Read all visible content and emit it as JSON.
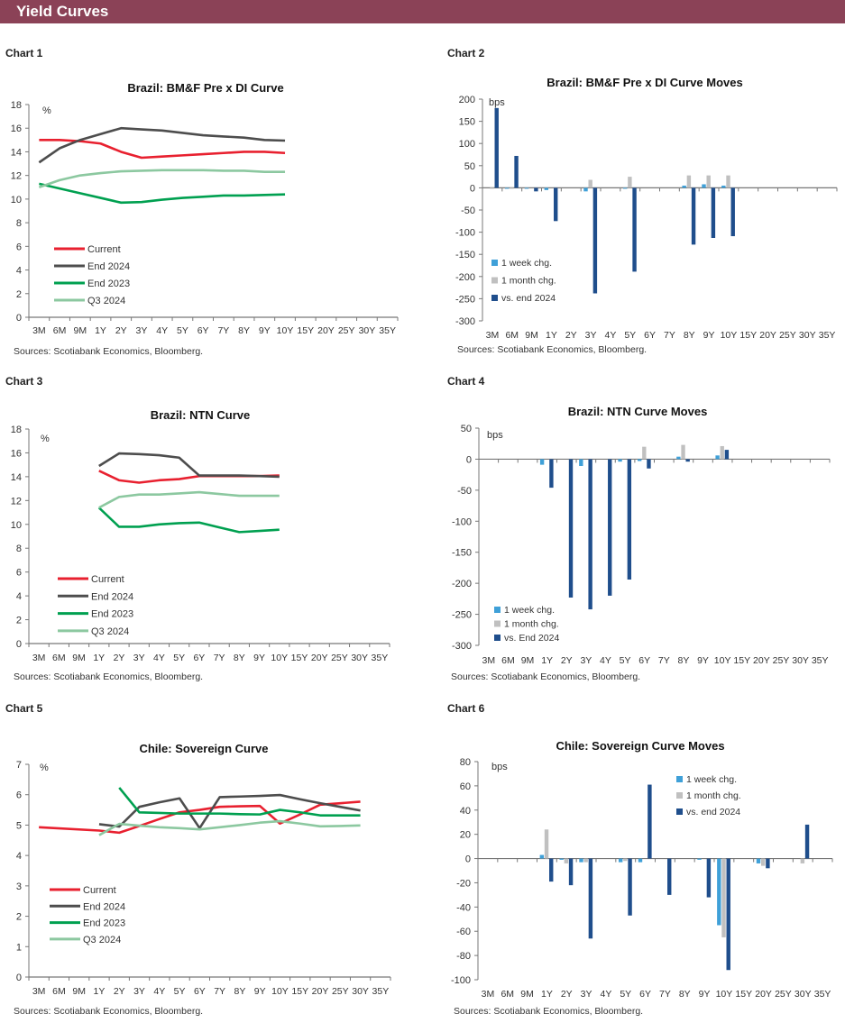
{
  "header": {
    "title": "Yield Curves"
  },
  "colors": {
    "header_bg": "#8b4257",
    "Current": "#e8202f",
    "End 2024": "#4d4d4d",
    "End 2023": "#00a050",
    "Q3 2024": "#8cc8a0",
    "week": "#3fa0d8",
    "month": "#c0c0c0",
    "end": "#1f4e8c"
  },
  "chart_data": [
    {
      "label": "Chart 1",
      "type": "line",
      "title": "Brazil: BM&F Pre x DI Curve",
      "ylabel": "%",
      "ylim": [
        0,
        18
      ],
      "ytick_step": 2,
      "grid": false,
      "legend": "bottom-left",
      "sources": "Sources:  Scotiabank  Economics,  Bloomberg.",
      "categories": [
        "3M",
        "6M",
        "9M",
        "1Y",
        "2Y",
        "3Y",
        "4Y",
        "5Y",
        "6Y",
        "7Y",
        "8Y",
        "9Y",
        "10Y",
        "15Y",
        "20Y",
        "25Y",
        "30Y",
        "35Y"
      ],
      "series": [
        {
          "name": "Current",
          "values": [
            15.0,
            15.0,
            14.9,
            14.7,
            14.0,
            13.5,
            13.6,
            13.7,
            13.8,
            13.9,
            14.0,
            14.0,
            13.9,
            null,
            null,
            null,
            null,
            null
          ]
        },
        {
          "name": "End 2024",
          "values": [
            13.1,
            14.3,
            15.0,
            15.5,
            16.0,
            15.9,
            15.8,
            15.6,
            15.4,
            15.3,
            15.2,
            15.0,
            14.95,
            null,
            null,
            null,
            null,
            null
          ]
        },
        {
          "name": "End 2023",
          "values": [
            11.3,
            10.9,
            10.5,
            10.1,
            9.7,
            9.75,
            9.95,
            10.1,
            10.2,
            10.3,
            10.3,
            10.35,
            10.4,
            null,
            null,
            null,
            null,
            null
          ]
        },
        {
          "name": "Q3 2024",
          "values": [
            11.0,
            11.6,
            12.0,
            12.2,
            12.35,
            12.4,
            12.45,
            12.45,
            12.45,
            12.4,
            12.4,
            12.3,
            12.3,
            null,
            null,
            null,
            null,
            null
          ]
        }
      ]
    },
    {
      "label": "Chart 2",
      "type": "bar",
      "title": "Brazil: BM&F Pre x DI Curve Moves",
      "ylabel": "bps",
      "ylim": [
        -300,
        200
      ],
      "ytick_step": 50,
      "grid": false,
      "legend": "bottom-left",
      "sources": "Sources:  Scotiabank  Economics,  Bloomberg.",
      "categories": [
        "3M",
        "6M",
        "9M",
        "1Y",
        "2Y",
        "3Y",
        "4Y",
        "5Y",
        "6Y",
        "7Y",
        "8Y",
        "9Y",
        "10Y",
        "15Y",
        "20Y",
        "25Y",
        "30Y",
        "35Y"
      ],
      "series": [
        {
          "name": "1 week chg.",
          "key": "week",
          "values": [
            0,
            -2,
            -2,
            -5,
            null,
            -8,
            null,
            -2,
            null,
            null,
            5,
            8,
            5,
            null,
            null,
            null,
            null,
            null
          ]
        },
        {
          "name": "1 month chg.",
          "key": "month",
          "values": [
            -1,
            -1,
            0,
            0,
            null,
            18,
            null,
            25,
            null,
            null,
            28,
            28,
            28,
            null,
            null,
            null,
            null,
            null
          ]
        },
        {
          "name": "vs. end 2024",
          "key": "end",
          "values": [
            180,
            72,
            -8,
            -75,
            null,
            -238,
            null,
            -189,
            null,
            null,
            -128,
            -113,
            -109,
            null,
            null,
            null,
            null,
            null
          ]
        }
      ]
    },
    {
      "label": "Chart 3",
      "type": "line",
      "title": "Brazil: NTN Curve",
      "ylabel": "%",
      "ylim": [
        0,
        18
      ],
      "ytick_step": 2,
      "grid": false,
      "legend": "bottom-left",
      "sources": "Sources:  Scotiabank  Economics,  Bloomberg.",
      "categories": [
        "3M",
        "6M",
        "9M",
        "1Y",
        "2Y",
        "3Y",
        "4Y",
        "5Y",
        "6Y",
        "7Y",
        "8Y",
        "9Y",
        "10Y",
        "15Y",
        "20Y",
        "25Y",
        "30Y",
        "35Y"
      ],
      "series": [
        {
          "name": "Current",
          "values": [
            null,
            null,
            null,
            14.5,
            13.7,
            13.5,
            13.7,
            13.8,
            14.05,
            14.05,
            14.05,
            14.05,
            14.1,
            null,
            null,
            null,
            null,
            null
          ]
        },
        {
          "name": "End 2024",
          "values": [
            null,
            null,
            null,
            14.9,
            15.95,
            15.9,
            15.8,
            15.6,
            14.1,
            14.1,
            14.1,
            14.05,
            14.0,
            null,
            null,
            null,
            null,
            null
          ]
        },
        {
          "name": "End 2023",
          "values": [
            null,
            null,
            null,
            11.4,
            9.8,
            9.8,
            10.0,
            10.1,
            10.15,
            9.75,
            9.35,
            9.45,
            9.55,
            null,
            null,
            null,
            null,
            null
          ]
        },
        {
          "name": "Q3 2024",
          "values": [
            null,
            null,
            null,
            11.4,
            12.3,
            12.5,
            12.5,
            12.6,
            12.7,
            12.55,
            12.4,
            12.4,
            12.4,
            null,
            null,
            null,
            null,
            null
          ]
        }
      ]
    },
    {
      "label": "Chart 4",
      "type": "bar",
      "title": "Brazil: NTN Curve Moves",
      "ylabel": "bps",
      "ylim": [
        -300,
        50
      ],
      "ytick_step": 50,
      "grid": false,
      "legend": "bottom-left",
      "sources": "Sources:  Scotiabank  Economics,  Bloomberg.",
      "categories": [
        "3M",
        "6M",
        "9M",
        "1Y",
        "2Y",
        "3Y",
        "4Y",
        "5Y",
        "6Y",
        "7Y",
        "8Y",
        "9Y",
        "10Y",
        "15Y",
        "20Y",
        "25Y",
        "30Y",
        "35Y"
      ],
      "series": [
        {
          "name": "1 week chg.",
          "key": "week",
          "values": [
            null,
            null,
            null,
            -9,
            0,
            -11,
            0,
            -4,
            -3,
            null,
            4,
            null,
            6,
            null,
            null,
            null,
            null,
            null
          ]
        },
        {
          "name": "1 month chg.",
          "key": "month",
          "values": [
            null,
            null,
            null,
            0,
            0,
            0,
            0,
            0,
            20,
            null,
            23,
            null,
            21,
            null,
            null,
            null,
            null,
            null
          ]
        },
        {
          "name": "vs. End 2024",
          "key": "end",
          "values": [
            null,
            null,
            null,
            -46,
            -223,
            -242,
            -220,
            -194,
            -15,
            null,
            -4,
            null,
            15,
            null,
            null,
            null,
            null,
            null
          ]
        }
      ]
    },
    {
      "label": "Chart 5",
      "type": "line",
      "title": "Chile: Sovereign  Curve",
      "ylabel": "%",
      "ylim": [
        0,
        7
      ],
      "ytick_step": 1,
      "grid": false,
      "legend": "bottom-left",
      "sources": "Sources:  Scotiabank  Economics,  Bloomberg.",
      "categories": [
        "3M",
        "6M",
        "9M",
        "1Y",
        "2Y",
        "3Y",
        "4Y",
        "5Y",
        "6Y",
        "7Y",
        "8Y",
        "9Y",
        "10Y",
        "15Y",
        "20Y",
        "25Y",
        "30Y",
        "35Y"
      ],
      "series": [
        {
          "name": "Current",
          "values": [
            4.93,
            null,
            null,
            4.82,
            4.75,
            4.97,
            5.2,
            5.42,
            5.5,
            5.6,
            5.62,
            5.63,
            5.05,
            5.35,
            5.67,
            5.72,
            5.77,
            null
          ]
        },
        {
          "name": "End 2024",
          "values": [
            null,
            null,
            null,
            5.03,
            4.95,
            5.6,
            5.75,
            5.88,
            4.9,
            5.92,
            5.94,
            5.96,
            5.99,
            5.85,
            5.72,
            5.6,
            5.48,
            null
          ]
        },
        {
          "name": "End 2023",
          "values": [
            null,
            null,
            null,
            null,
            6.23,
            5.42,
            5.4,
            5.38,
            5.38,
            5.38,
            5.36,
            5.35,
            5.5,
            5.42,
            5.32,
            5.32,
            5.32,
            null
          ]
        },
        {
          "name": "Q3 2024",
          "values": [
            null,
            null,
            null,
            4.67,
            5.04,
            4.98,
            4.93,
            4.9,
            4.86,
            4.93,
            5.0,
            5.08,
            5.13,
            5.05,
            4.96,
            4.97,
            4.99,
            null
          ]
        }
      ]
    },
    {
      "label": "Chart 6",
      "type": "bar",
      "title": "Chile: Sovereign Curve Moves",
      "ylabel": "bps",
      "ylim": [
        -100,
        80
      ],
      "ytick_step": 20,
      "grid": false,
      "legend": "top-right",
      "sources": "Sources:  Scotiabank  Economics,  Bloomberg.",
      "categories": [
        "3M",
        "6M",
        "9M",
        "1Y",
        "2Y",
        "3Y",
        "4Y",
        "5Y",
        "6Y",
        "7Y",
        "8Y",
        "9Y",
        "10Y",
        "15Y",
        "20Y",
        "25Y",
        "30Y",
        "35Y"
      ],
      "series": [
        {
          "name": "1 week chg.",
          "key": "week",
          "values": [
            null,
            null,
            null,
            3,
            -1,
            -3,
            null,
            -3,
            -3,
            0,
            null,
            -1,
            -55,
            null,
            -4,
            null,
            0,
            null
          ]
        },
        {
          "name": "1 month chg.",
          "key": "month",
          "values": [
            null,
            null,
            null,
            24,
            -4,
            -3,
            null,
            -2,
            0,
            0,
            null,
            0,
            -65,
            null,
            -6,
            null,
            -4,
            null
          ]
        },
        {
          "name": "vs. end 2024",
          "key": "end",
          "values": [
            null,
            null,
            null,
            -19,
            -22,
            -66,
            null,
            -47,
            61,
            -30,
            null,
            -32,
            -92,
            null,
            -8,
            null,
            28,
            null
          ]
        }
      ]
    }
  ]
}
